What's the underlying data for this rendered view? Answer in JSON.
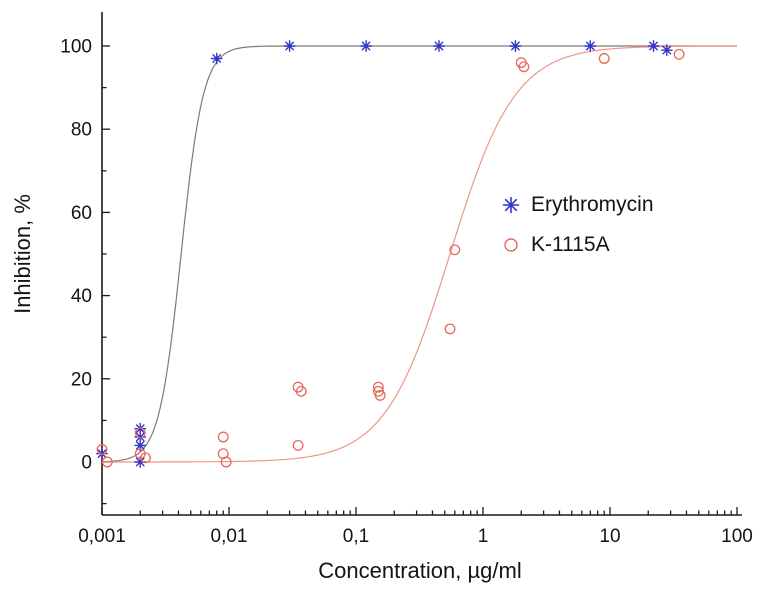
{
  "chart_data": {
    "type": "scatter",
    "title": "",
    "xlabel": "Concentration, µg/ml",
    "ylabel": "Inhibition, %",
    "x_scale": "log",
    "xlim": [
      0.001,
      100
    ],
    "ylim": [
      -13,
      109
    ],
    "grid": false,
    "legend_position": "center-right",
    "x_ticks": [
      {
        "value": 0.001,
        "label": "0,001"
      },
      {
        "value": 0.01,
        "label": "0,01"
      },
      {
        "value": 0.1,
        "label": "0,1"
      },
      {
        "value": 1,
        "label": "1"
      },
      {
        "value": 10,
        "label": "10"
      },
      {
        "value": 100,
        "label": "100"
      }
    ],
    "y_ticks": [
      {
        "value": 0,
        "label": "0"
      },
      {
        "value": 20,
        "label": "20"
      },
      {
        "value": 40,
        "label": "40"
      },
      {
        "value": 60,
        "label": "60"
      },
      {
        "value": 80,
        "label": "80"
      },
      {
        "value": 100,
        "label": "100"
      }
    ],
    "y_minor_ticks": [
      -10,
      10,
      30,
      50,
      70,
      90
    ],
    "series": [
      {
        "name": "Erythromycin",
        "marker": "asterisk",
        "color": "#3434c8",
        "points": [
          [
            0.001,
            2
          ],
          [
            0.002,
            8
          ],
          [
            0.002,
            6
          ],
          [
            0.002,
            4
          ],
          [
            0.002,
            0
          ],
          [
            0.008,
            97
          ],
          [
            0.03,
            100
          ],
          [
            0.12,
            100
          ],
          [
            0.45,
            100
          ],
          [
            1.8,
            100
          ],
          [
            7,
            100
          ],
          [
            22,
            100
          ],
          [
            28,
            99
          ]
        ],
        "fit": {
          "model": "sigmoid",
          "bottom": 0,
          "top": 100,
          "ec50": 0.0042,
          "hill": 5,
          "color": "#7a7a7a"
        }
      },
      {
        "name": "K-1115A",
        "marker": "open-circle",
        "color": "#e8695c",
        "points": [
          [
            0.001,
            3
          ],
          [
            0.0011,
            0
          ],
          [
            0.002,
            7
          ],
          [
            0.002,
            2
          ],
          [
            0.0022,
            1
          ],
          [
            0.009,
            6
          ],
          [
            0.009,
            2
          ],
          [
            0.0095,
            0
          ],
          [
            0.035,
            18
          ],
          [
            0.037,
            17
          ],
          [
            0.035,
            4
          ],
          [
            0.15,
            18
          ],
          [
            0.15,
            17
          ],
          [
            0.155,
            16
          ],
          [
            0.55,
            32
          ],
          [
            0.6,
            51
          ],
          [
            2,
            96
          ],
          [
            2.1,
            95
          ],
          [
            9,
            97
          ],
          [
            35,
            98
          ]
        ],
        "fit": {
          "model": "sigmoid",
          "bottom": 0,
          "top": 100,
          "ec50": 0.55,
          "hill": 1.7,
          "color": "#f0958b"
        }
      }
    ]
  }
}
